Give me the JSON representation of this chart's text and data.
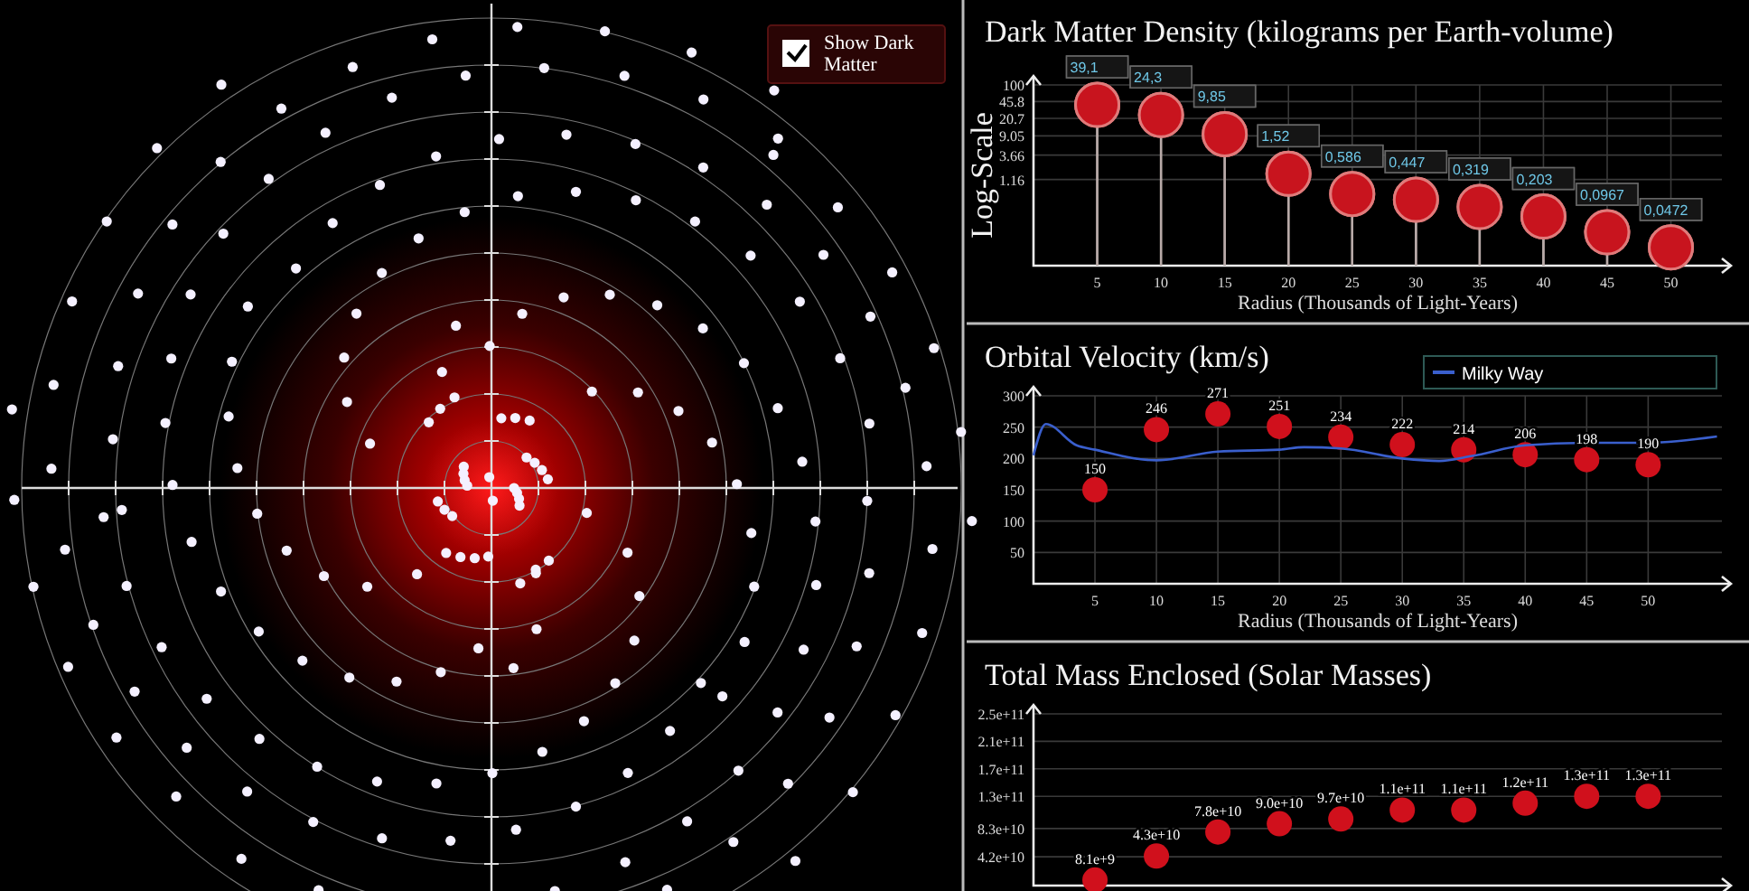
{
  "chart_data": [
    {
      "type": "other",
      "annotations": [
        "Show Dark Matter"
      ]
    },
    {
      "type": "lollipop",
      "title": "Dark Matter Density (kilograms per Earth-volume)",
      "xlabel": "Radius (Thousands of Light-Years)",
      "ylabel": "Log-Scale",
      "x": [
        5,
        10,
        15,
        20,
        25,
        30,
        35,
        40,
        45,
        50
      ],
      "values": [
        39.1,
        24.3,
        9.85,
        1.52,
        0.586,
        0.447,
        0.319,
        0.203,
        0.0967,
        0.0472
      ],
      "value_labels": [
        "39,1",
        "24,3",
        "9,85",
        "1,52",
        "0,586",
        "0,447",
        "0,319",
        "0,203",
        "0,0967",
        "0,0472"
      ],
      "color": "#c8141e",
      "log": true,
      "xlim": [
        0,
        54
      ],
      "xticks": [
        5,
        10,
        15,
        20,
        25,
        30,
        35,
        40,
        45,
        50
      ],
      "ylim": [
        0.02,
        100
      ],
      "yticks": [
        1.16,
        3.66,
        9.05,
        20.7,
        45.8,
        100
      ],
      "grid": true,
      "marker": "circle"
    },
    {
      "type": "scatter",
      "title": "Orbital Velocity (km/s)",
      "xlabel": "Radius (Thousands of Light-Years)",
      "xlim": [
        0,
        56
      ],
      "xticks": [
        5,
        10,
        15,
        20,
        25,
        30,
        35,
        40,
        45,
        50
      ],
      "ylim": [
        0,
        300
      ],
      "yticks": [
        50,
        100,
        150,
        200,
        250,
        300
      ],
      "grid": true,
      "legend": "top right",
      "series": [
        {
          "type": "scatter",
          "marker": "circle",
          "color": "#d0101c",
          "x": [
            5,
            10,
            15,
            20,
            25,
            30,
            35,
            40,
            45,
            50
          ],
          "values": [
            150,
            246,
            271,
            251,
            234,
            222,
            214,
            206,
            198,
            190
          ],
          "value_labels": [
            "150",
            "246",
            "271",
            "251",
            "234",
            "222",
            "214",
            "206",
            "198",
            "190"
          ]
        },
        {
          "type": "line",
          "marker": "none",
          "name": "Milky Way",
          "color": "#3a5fcd",
          "x": [
            0,
            1,
            3.5,
            5,
            10,
            15,
            20,
            22,
            25,
            30,
            33,
            35.7,
            40,
            45,
            50,
            55.6
          ],
          "values": [
            205,
            255,
            221,
            214,
            197,
            211,
            214,
            218,
            216,
            200,
            196,
            204,
            221,
            225,
            225,
            235
          ]
        }
      ]
    },
    {
      "type": "scatter",
      "title": "Total Mass Enclosed (Solar Masses)",
      "x": [
        5,
        10,
        15,
        20,
        25,
        30,
        35,
        40,
        45,
        50
      ],
      "values": [
        8100000000.0,
        43000000000.0,
        78000000000.0,
        90000000000.0,
        97000000000.0,
        110000000000.0,
        110000000000.0,
        120000000000.0,
        130000000000.0,
        130000000000.0
      ],
      "value_labels": [
        "8.1e+9",
        "4.3e+10",
        "7.8e+10",
        "9.0e+10",
        "9.7e+10",
        "1.1e+11",
        "1.1e+11",
        "1.2e+11",
        "1.3e+11",
        "1.3e+11"
      ],
      "color": "#d0101c",
      "xlim": [
        0,
        56
      ],
      "ylim": [
        0,
        250000000000.0
      ],
      "yticks": [
        {
          "value": 42000000000.0,
          "label": "4.2e+10"
        },
        {
          "value": 83000000000.0,
          "label": "8.3e+10"
        },
        {
          "value": 130000000000.0,
          "label": "1.3e+11"
        },
        {
          "value": 170000000000.0,
          "label": "1.7e+11"
        },
        {
          "value": 210000000000.0,
          "label": "2.1e+11"
        },
        {
          "value": 250000000000.0,
          "label": "2.5e+11"
        }
      ],
      "tick_labels": "y",
      "grid": "y",
      "marker": "circle"
    }
  ]
}
